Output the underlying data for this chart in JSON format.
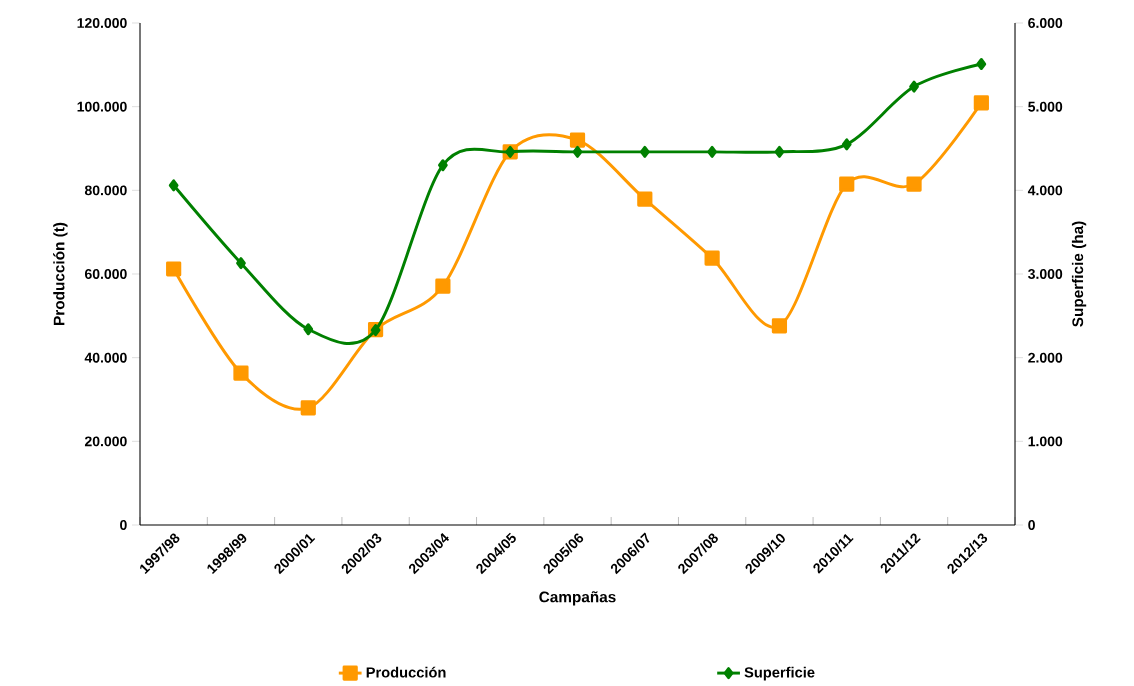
{
  "chart_data": {
    "type": "line",
    "xlabel": "Campañas",
    "ylabel": "Producción (t)",
    "y2label": "Superficie (ha)",
    "categories": [
      "1997/98",
      "1998/99",
      "2000/01",
      "2002/03",
      "2003/04",
      "2004/05",
      "2005/06",
      "2006/07",
      "2007/08",
      "2009/10",
      "2010/11",
      "2011/12",
      "2012/13"
    ],
    "series": [
      {
        "name": "Producción",
        "color": "#ff9900",
        "marker": "square",
        "values": [
          61200,
          36300,
          28000,
          46700,
          57100,
          89200,
          92000,
          77900,
          63800,
          47600,
          81500,
          81500,
          100900
        ]
      },
      {
        "name": "Superficie",
        "color": "#008000",
        "marker": "diamond",
        "axis": "y2",
        "values": [
          4060,
          3130,
          2340,
          2330,
          4300,
          4460,
          4460,
          4460,
          4460,
          4460,
          4550,
          5240,
          5510
        ]
      }
    ],
    "ylim": [
      0,
      120000
    ],
    "yticks": [
      0,
      {
        "value": 20000,
        "label": "20.000"
      },
      {
        "value": 40000,
        "label": "40.000"
      },
      {
        "value": 60000,
        "label": "60.000"
      },
      {
        "value": 80000,
        "label": "80.000"
      },
      {
        "value": 100000,
        "label": "100.000"
      },
      {
        "value": 120000,
        "label": "120.000"
      }
    ],
    "y2lim": [
      0,
      6000
    ],
    "y2ticks": [
      0,
      {
        "value": 1000,
        "label": "1.000"
      },
      {
        "value": 2000,
        "label": "2.000"
      },
      {
        "value": 3000,
        "label": "3.000"
      },
      {
        "value": 4000,
        "label": "4.000"
      },
      {
        "value": 5000,
        "label": "5.000"
      },
      {
        "value": 6000,
        "label": "6.000"
      }
    ],
    "grid": false,
    "legend": "bottom"
  }
}
